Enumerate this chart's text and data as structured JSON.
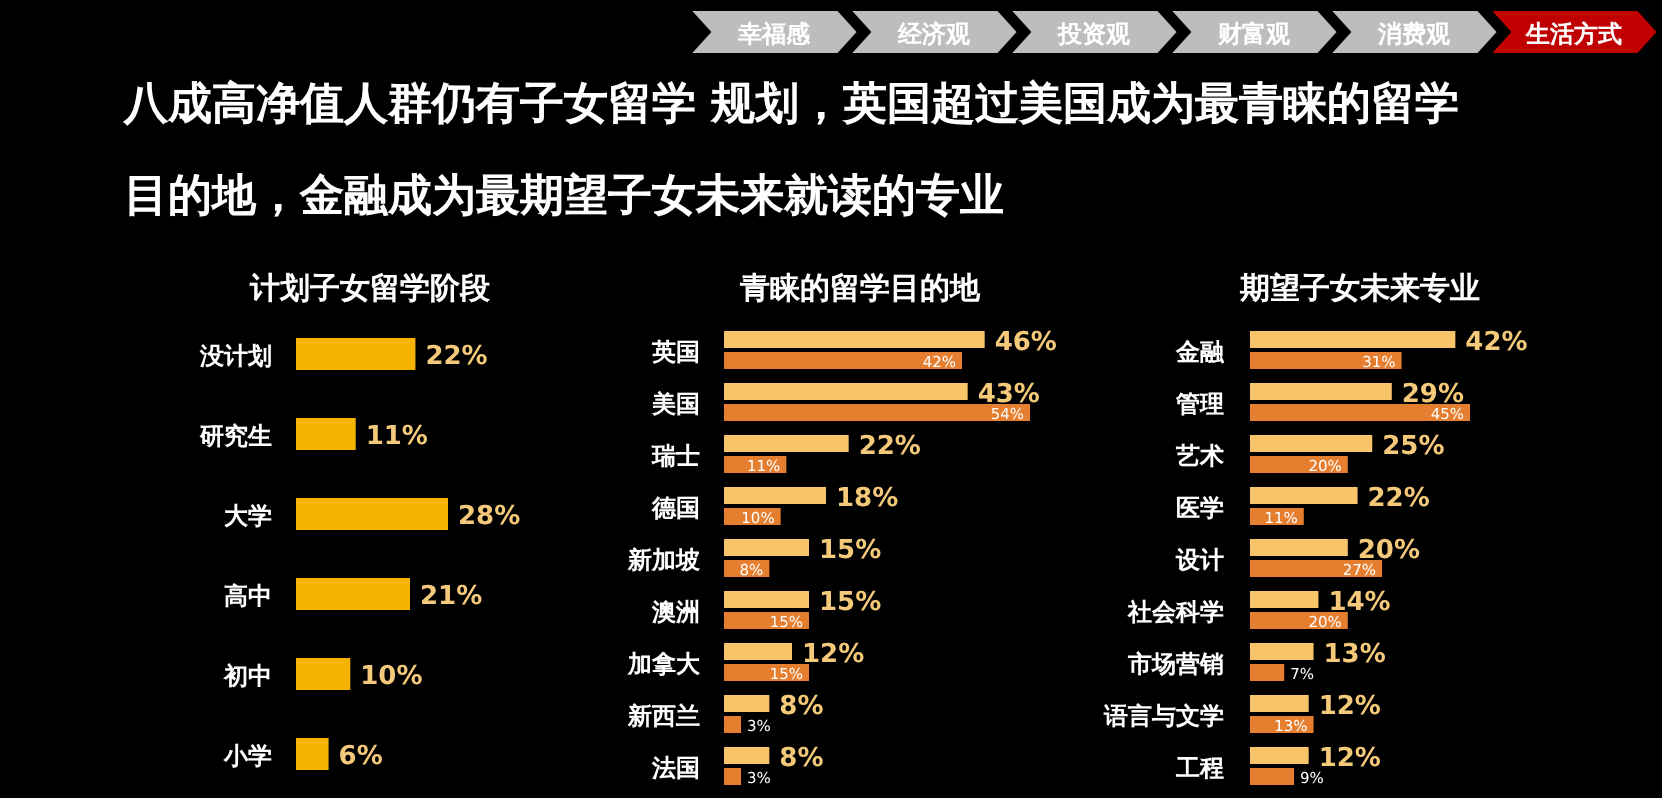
{
  "chart_data": [
    {
      "type": "other",
      "title": "八成高净值人群仍有子女留学 规划，英国超过美国成为最青睐的留学目的地，金融成为最期望子女未来就读的专业",
      "annotations": [
        "幸福感",
        "经济观",
        "投资观",
        "财富观",
        "消费观",
        "生活方式"
      ]
    },
    {
      "type": "bar",
      "orientation": "horizontal",
      "title": "计划子女留学阶段",
      "categories": [
        "没计划",
        "研究生",
        "大学",
        "高中",
        "初中",
        "小学"
      ],
      "values": [
        22,
        11,
        28,
        21,
        10,
        6
      ],
      "color": "#f6b400",
      "value_labels": [
        "22%",
        "11%",
        "28%",
        "21%",
        "10%",
        "6%"
      ]
    },
    {
      "type": "bar",
      "orientation": "horizontal",
      "title": "青睐的留学目的地",
      "categories": [
        "英国",
        "美国",
        "瑞士",
        "德国",
        "新加坡",
        "澳洲",
        "加拿大",
        "新西兰",
        "法国"
      ],
      "series": [
        {
          "color": "#f8c46a",
          "values": [
            46,
            43,
            22,
            18,
            15,
            15,
            12,
            8,
            8
          ],
          "value_labels": [
            "46%",
            "43%",
            "22%",
            "18%",
            "15%",
            "15%",
            "12%",
            "8%",
            "8%"
          ]
        },
        {
          "color": "#e67e30",
          "values": [
            42,
            54,
            11,
            10,
            8,
            15,
            15,
            3,
            3
          ],
          "value_labels": [
            "42%",
            "54%",
            "11%",
            "10%",
            "8%",
            "15%",
            "15%",
            "3%",
            "3%"
          ]
        }
      ]
    },
    {
      "type": "bar",
      "orientation": "horizontal",
      "title": "期望子女未来专业",
      "categories": [
        "金融",
        "管理",
        "艺术",
        "医学",
        "设计",
        "社会科学",
        "市场营销",
        "语言与文学",
        "工程"
      ],
      "series": [
        {
          "color": "#f8c46a",
          "values": [
            42,
            29,
            25,
            22,
            20,
            14,
            13,
            12,
            12
          ],
          "value_labels": [
            "42%",
            "29%",
            "25%",
            "22%",
            "20%",
            "14%",
            "13%",
            "12%",
            "12%"
          ]
        },
        {
          "color": "#e67e30",
          "values": [
            31,
            45,
            20,
            11,
            27,
            20,
            7,
            13,
            9
          ],
          "value_labels": [
            "31%",
            "45%",
            "20%",
            "11%",
            "27%",
            "20%",
            "7%",
            "13%",
            "9%"
          ]
        }
      ]
    }
  ]
}
